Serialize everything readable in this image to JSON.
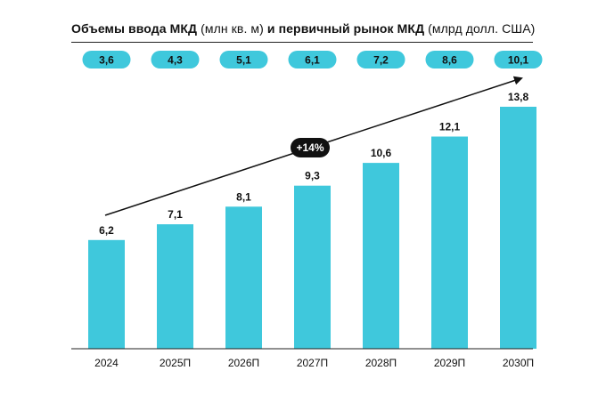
{
  "title": {
    "part1": "Объемы ввода МКД",
    "part2": " (млн кв. м) ",
    "part3": "и первичный рынок МКД",
    "part4": " (млрд долл. США)"
  },
  "chart_data": {
    "type": "bar",
    "title": "Объемы ввода МКД (млн кв. м) и первичный рынок МКД (млрд долл. США)",
    "categories": [
      "2024",
      "2025П",
      "2026П",
      "2027П",
      "2028П",
      "2029П",
      "2030П"
    ],
    "series": [
      {
        "name": "Объемы ввода МКД (млн кв. м)",
        "values": [
          6.2,
          7.1,
          8.1,
          9.3,
          10.6,
          12.1,
          13.8
        ],
        "labels": [
          "6,2",
          "7,1",
          "8,1",
          "9,3",
          "10,6",
          "12,1",
          "13,8"
        ]
      },
      {
        "name": "Первичный рынок МКД (млрд долл. США)",
        "values": [
          3.6,
          4.3,
          5.1,
          6.1,
          7.2,
          8.6,
          10.1
        ],
        "labels": [
          "3,6",
          "4,3",
          "5,1",
          "6,1",
          "7,2",
          "8,6",
          "10,1"
        ]
      }
    ],
    "ylim": [
      0,
      13.8
    ],
    "annotation": "+14%",
    "colors": {
      "bar": "#3fc8dc",
      "pill": "#3fc8dc",
      "badge": "#111111",
      "axis": "#222222"
    }
  }
}
